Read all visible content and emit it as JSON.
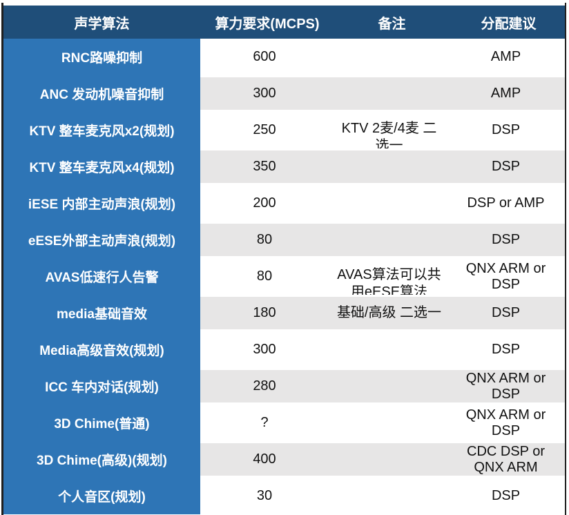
{
  "colors": {
    "header_bg": "#1F4E79",
    "label_col_bg": "#2E75B6",
    "stripe_bg": "#E7E6E6",
    "header_text": "#FFFFFF",
    "cell_text": "#111111",
    "border_dark": "#1F1F1F"
  },
  "table": {
    "columns": [
      {
        "label": "声学算法"
      },
      {
        "label": "算力要求(MCPS)"
      },
      {
        "label": "备注"
      },
      {
        "label": "分配建议"
      }
    ],
    "rows": [
      {
        "algorithm": "RNC路噪抑制",
        "mcps": "600",
        "note": "",
        "allocation": "AMP"
      },
      {
        "algorithm": "ANC 发动机噪音抑制",
        "mcps": "300",
        "note": "",
        "allocation": "AMP"
      },
      {
        "algorithm": "KTV 整车麦克风x2(规划)",
        "mcps": "250",
        "note": "KTV 2麦/4麦 二\n选一",
        "allocation": "DSP"
      },
      {
        "algorithm": "KTV 整车麦克风x4(规划)",
        "mcps": "350",
        "note": "",
        "allocation": "DSP"
      },
      {
        "algorithm": "iESE 内部主动声浪(规划)",
        "mcps": "200",
        "note": "",
        "allocation": "DSP or AMP"
      },
      {
        "algorithm": "eESE外部主动声浪(规划)",
        "mcps": "80",
        "note": "",
        "allocation": "DSP"
      },
      {
        "algorithm": "AVAS低速行人告警",
        "mcps": "80",
        "note": "AVAS算法可以共\n用eESE算法",
        "allocation": "QNX ARM or\nDSP"
      },
      {
        "algorithm": "media基础音效",
        "mcps": "180",
        "note": "基础/高级 二选一",
        "allocation": "DSP"
      },
      {
        "algorithm": "Media高级音效(规划)",
        "mcps": "300",
        "note": "",
        "allocation": "DSP"
      },
      {
        "algorithm": "ICC 车内对话(规划)",
        "mcps": "280",
        "note": "",
        "allocation": "QNX ARM or\nDSP"
      },
      {
        "algorithm": "3D Chime(普通)",
        "mcps": "?",
        "note": "",
        "allocation": "QNX ARM or\nDSP"
      },
      {
        "algorithm": "3D Chime(高级)(规划)",
        "mcps": "400",
        "note": "",
        "allocation": "CDC DSP or\nQNX ARM"
      },
      {
        "algorithm": "个人音区(规划)",
        "mcps": "30",
        "note": "",
        "allocation": "DSP"
      }
    ]
  }
}
